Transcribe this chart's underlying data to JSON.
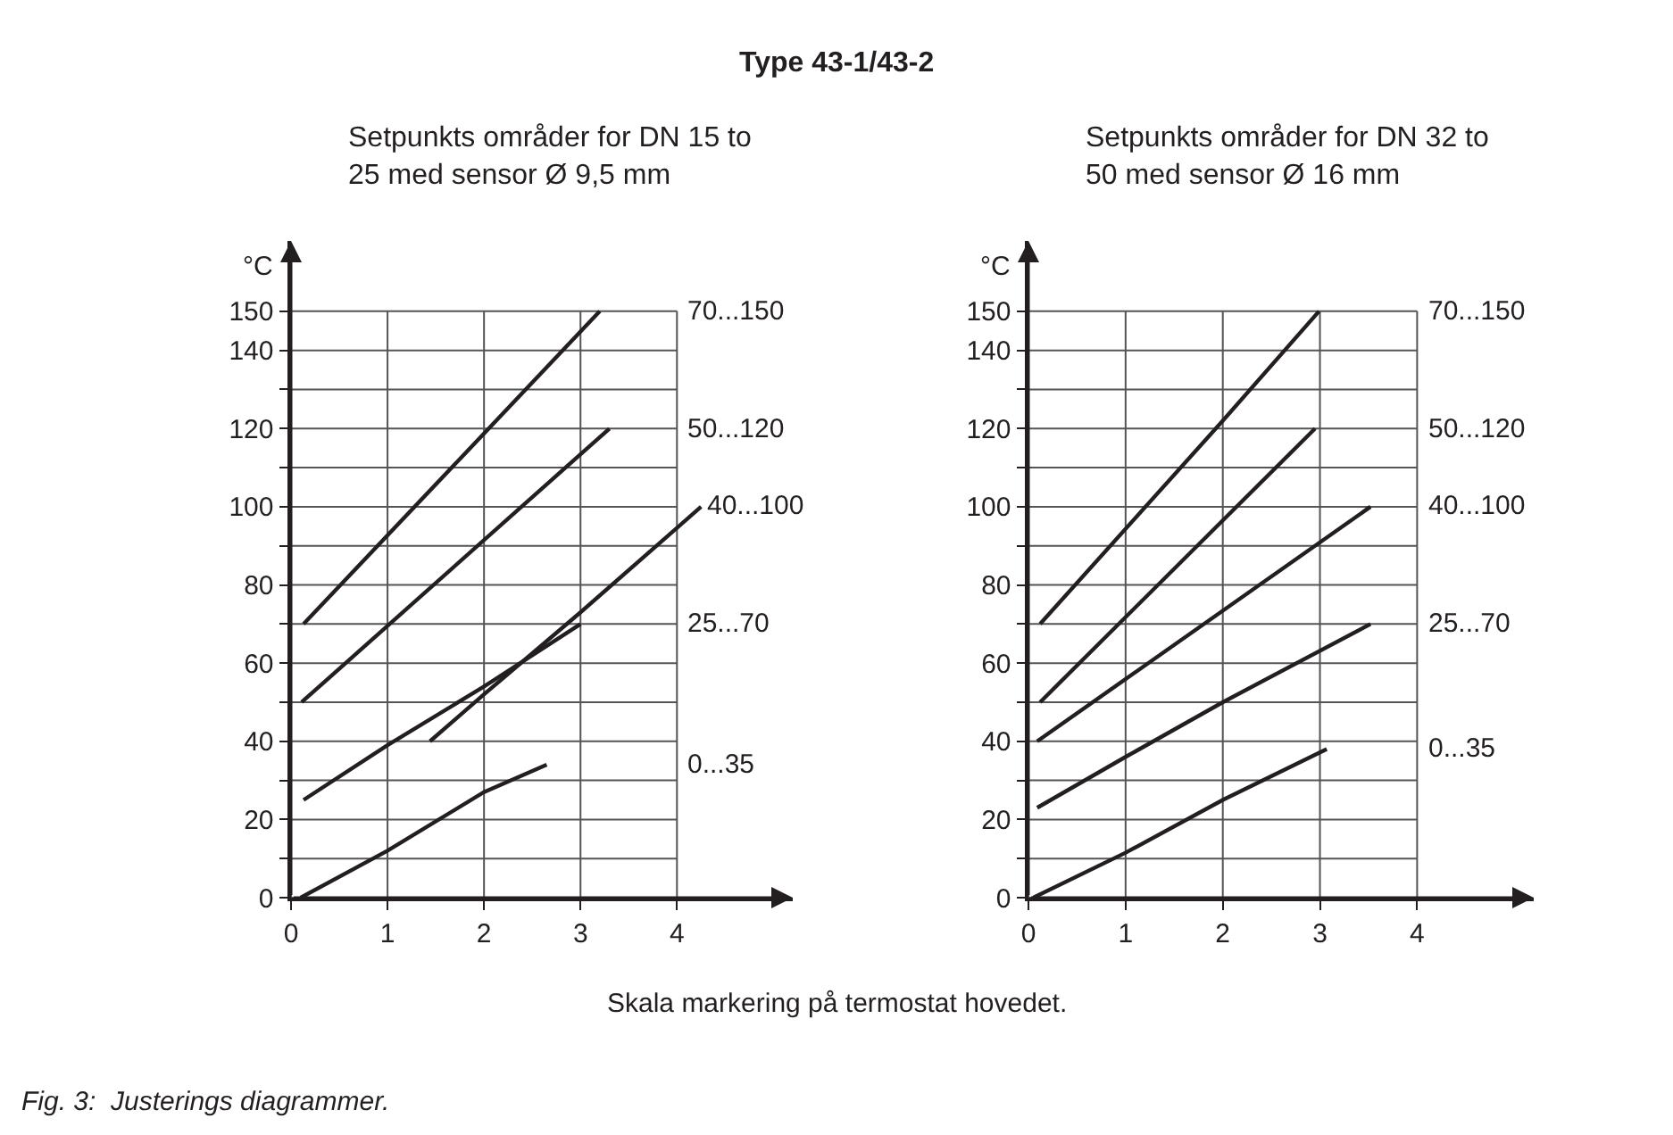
{
  "chart_data": [
    {
      "type": "line",
      "title": "Type 43-1/43-2",
      "subtitle": "Setpunkts områder for DN 15 to 25 med sensor Ø 9,5 mm",
      "xlabel": "Skala markering på termostat hovedet.",
      "ylabel": "°C",
      "annotations": [
        "Fig. 3:  Justerings diagrammer."
      ],
      "xlim": [
        0,
        5.2
      ],
      "ylim": [
        0,
        168
      ],
      "xticks": [
        0,
        1,
        2,
        3,
        4
      ],
      "yticks": [
        0,
        {
          "value": 10,
          "label": null
        },
        20,
        {
          "value": 30,
          "label": null
        },
        40,
        {
          "value": 50,
          "label": null
        },
        60,
        {
          "value": 70,
          "label": null
        },
        80,
        {
          "value": 90,
          "label": null
        },
        100,
        {
          "value": 110,
          "label": null
        },
        120,
        {
          "value": 130,
          "label": null
        },
        140,
        150
      ],
      "grid": true,
      "marker": "none",
      "line_style": "solid",
      "series": [
        {
          "name": "70...150",
          "color": "#231f20",
          "x": [
            0.13,
            3.2
          ],
          "values": [
            70,
            150
          ]
        },
        {
          "name": "50...120",
          "color": "#231f20",
          "x": [
            0.11,
            3.3
          ],
          "values": [
            50,
            120
          ]
        },
        {
          "name": "40...100",
          "color": "#231f20",
          "x": [
            1.44,
            2,
            3,
            4.25
          ],
          "values": [
            40,
            52,
            73,
            100
          ]
        },
        {
          "name": "25...70",
          "color": "#231f20",
          "x": [
            0.13,
            1,
            2,
            3
          ],
          "values": [
            25,
            39,
            54,
            70
          ]
        },
        {
          "name": "0...35",
          "color": "#231f20",
          "x": [
            0.1,
            1,
            2,
            2.65
          ],
          "values": [
            0,
            12,
            27,
            34
          ]
        }
      ]
    },
    {
      "type": "line",
      "subtitle": "Setpunkts områder for DN 32 to 50 med sensor Ø 16 mm",
      "ylabel": "°C",
      "xlim": [
        0,
        5.2
      ],
      "ylim": [
        0,
        168
      ],
      "xticks": [
        0,
        1,
        2,
        3,
        4
      ],
      "yticks": [
        0,
        {
          "value": 10,
          "label": null
        },
        20,
        {
          "value": 30,
          "label": null
        },
        40,
        {
          "value": 50,
          "label": null
        },
        60,
        {
          "value": 70,
          "label": null
        },
        80,
        {
          "value": 90,
          "label": null
        },
        100,
        {
          "value": 110,
          "label": null
        },
        120,
        {
          "value": 130,
          "label": null
        },
        140,
        150
      ],
      "grid": true,
      "marker": "none",
      "line_style": "solid",
      "series": [
        {
          "name": "70...150",
          "color": "#231f20",
          "x": [
            0.12,
            2,
            2.99
          ],
          "values": [
            70,
            122,
            150
          ]
        },
        {
          "name": "50...120",
          "color": "#231f20",
          "x": [
            0.12,
            2.95
          ],
          "values": [
            50,
            120
          ]
        },
        {
          "name": "40...100",
          "color": "#231f20",
          "x": [
            0.09,
            3.52
          ],
          "values": [
            40,
            100
          ]
        },
        {
          "name": "25...70",
          "color": "#231f20",
          "x": [
            0.09,
            1,
            2,
            3.52
          ],
          "values": [
            23,
            36,
            50,
            70
          ]
        },
        {
          "name": "0...35",
          "color": "#231f20",
          "x": [
            0.05,
            1,
            2,
            3.07
          ],
          "values": [
            0,
            11.5,
            25,
            38
          ]
        }
      ]
    }
  ]
}
